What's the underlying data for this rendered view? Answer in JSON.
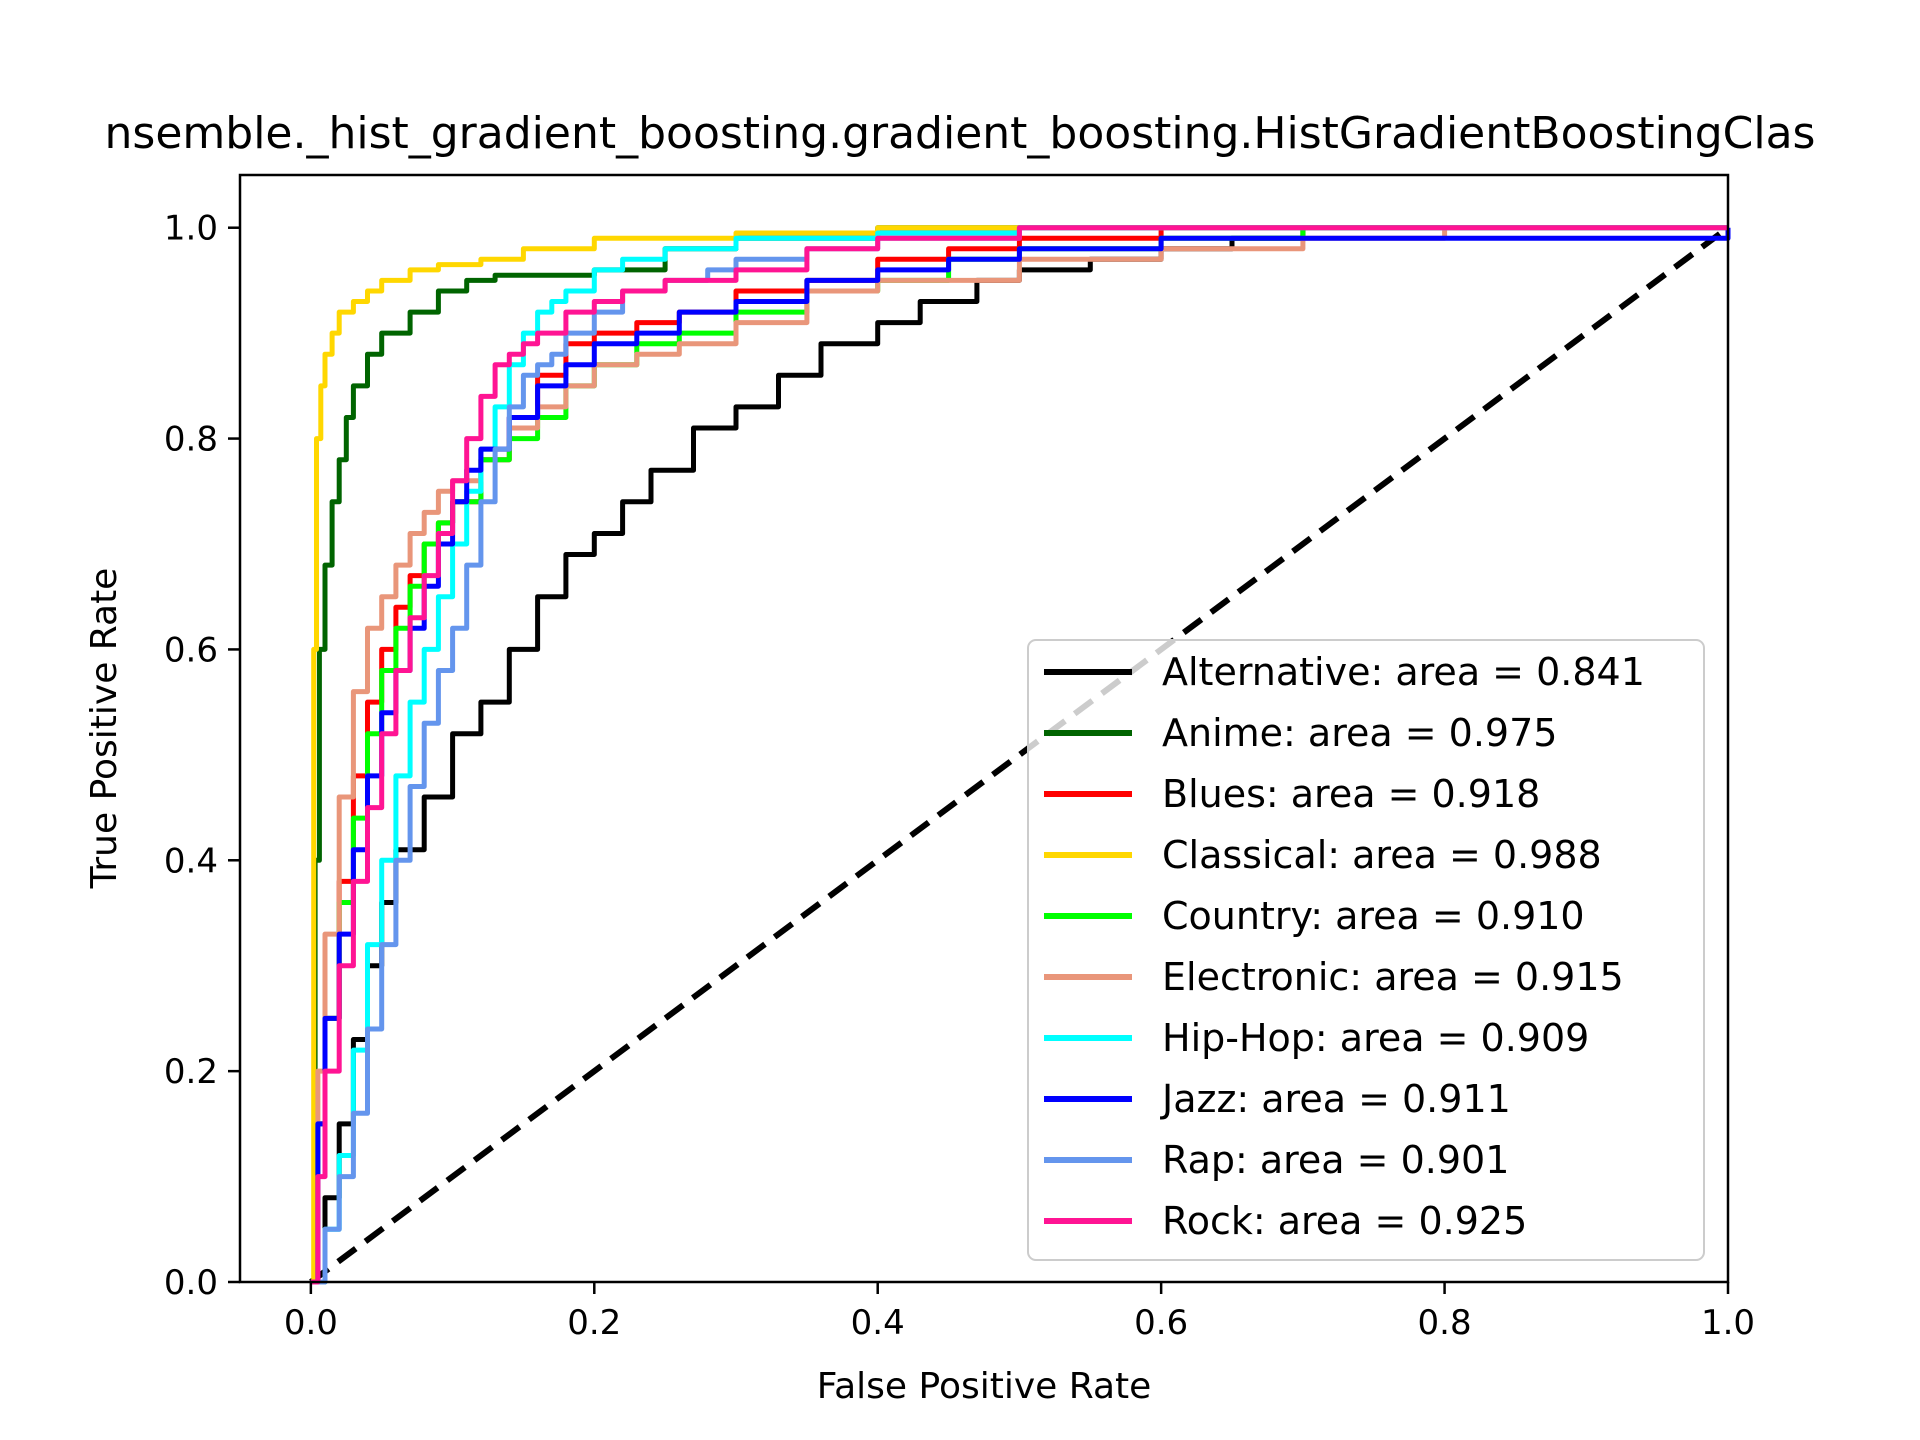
{
  "chart_data": {
    "type": "line",
    "title": "nsemble._hist_gradient_boosting.gradient_boosting.HistGradientBoostingClas",
    "xlabel": "False Positive Rate",
    "ylabel": "True Positive Rate",
    "xlim": [
      -0.05,
      1.0
    ],
    "ylim": [
      0.0,
      1.05
    ],
    "xticks": [
      "0.0",
      "0.2",
      "0.4",
      "0.6",
      "0.8",
      "1.0"
    ],
    "yticks": [
      "0.0",
      "0.2",
      "0.4",
      "0.6",
      "0.8",
      "1.0"
    ],
    "grid": false,
    "legend_position": "lower-right",
    "series": [
      {
        "name": "Alternative: area = 0.841",
        "color": "#000000",
        "x": [
          0.0,
          0.01,
          0.02,
          0.03,
          0.04,
          0.05,
          0.06,
          0.08,
          0.1,
          0.12,
          0.14,
          0.16,
          0.18,
          0.2,
          0.22,
          0.24,
          0.27,
          0.3,
          0.33,
          0.36,
          0.4,
          0.43,
          0.47,
          0.5,
          0.55,
          0.6,
          0.65,
          0.7,
          0.8,
          0.9,
          1.0
        ],
        "y": [
          0.0,
          0.08,
          0.15,
          0.23,
          0.3,
          0.36,
          0.41,
          0.46,
          0.52,
          0.55,
          0.6,
          0.65,
          0.69,
          0.71,
          0.74,
          0.77,
          0.81,
          0.83,
          0.86,
          0.89,
          0.91,
          0.93,
          0.95,
          0.96,
          0.97,
          0.98,
          0.99,
          1.0,
          1.0,
          1.0,
          1.0
        ]
      },
      {
        "name": "Anime: area = 0.975",
        "color": "#006400",
        "x": [
          0.0,
          0.003,
          0.006,
          0.01,
          0.015,
          0.02,
          0.025,
          0.03,
          0.04,
          0.05,
          0.07,
          0.09,
          0.11,
          0.13,
          0.2,
          0.25,
          0.3,
          0.4,
          0.6,
          1.0
        ],
        "y": [
          0.0,
          0.4,
          0.6,
          0.68,
          0.74,
          0.78,
          0.82,
          0.85,
          0.88,
          0.9,
          0.92,
          0.94,
          0.95,
          0.955,
          0.96,
          0.98,
          0.99,
          1.0,
          1.0,
          1.0
        ]
      },
      {
        "name": "Blues: area = 0.918",
        "color": "#ff0000",
        "x": [
          0.0,
          0.005,
          0.01,
          0.02,
          0.03,
          0.04,
          0.05,
          0.06,
          0.07,
          0.08,
          0.09,
          0.1,
          0.12,
          0.14,
          0.16,
          0.18,
          0.2,
          0.23,
          0.26,
          0.3,
          0.35,
          0.4,
          0.45,
          0.5,
          0.6,
          0.7,
          1.0
        ],
        "y": [
          0.0,
          0.15,
          0.25,
          0.38,
          0.48,
          0.55,
          0.6,
          0.64,
          0.67,
          0.7,
          0.72,
          0.74,
          0.78,
          0.82,
          0.86,
          0.89,
          0.9,
          0.91,
          0.92,
          0.94,
          0.95,
          0.97,
          0.98,
          0.99,
          1.0,
          1.0,
          1.0
        ]
      },
      {
        "name": "Classical: area = 0.988",
        "color": "#ffd700",
        "x": [
          0.0,
          0.002,
          0.004,
          0.007,
          0.01,
          0.015,
          0.02,
          0.03,
          0.04,
          0.05,
          0.07,
          0.09,
          0.12,
          0.15,
          0.2,
          0.3,
          0.4,
          0.6,
          1.0
        ],
        "y": [
          0.0,
          0.6,
          0.8,
          0.85,
          0.88,
          0.9,
          0.92,
          0.93,
          0.94,
          0.95,
          0.96,
          0.965,
          0.97,
          0.98,
          0.99,
          0.995,
          1.0,
          1.0,
          1.0
        ]
      },
      {
        "name": "Country: area = 0.910",
        "color": "#00ff00",
        "x": [
          0.0,
          0.005,
          0.01,
          0.02,
          0.03,
          0.04,
          0.05,
          0.06,
          0.07,
          0.08,
          0.09,
          0.1,
          0.12,
          0.14,
          0.16,
          0.18,
          0.2,
          0.23,
          0.26,
          0.3,
          0.35,
          0.4,
          0.45,
          0.5,
          0.6,
          0.7,
          1.0
        ],
        "y": [
          0.0,
          0.15,
          0.25,
          0.36,
          0.44,
          0.52,
          0.58,
          0.62,
          0.66,
          0.7,
          0.72,
          0.74,
          0.78,
          0.8,
          0.82,
          0.85,
          0.87,
          0.89,
          0.9,
          0.92,
          0.94,
          0.95,
          0.97,
          0.98,
          0.99,
          1.0,
          1.0
        ]
      },
      {
        "name": "Electronic: area = 0.915",
        "color": "#e9967a",
        "x": [
          0.0,
          0.005,
          0.01,
          0.02,
          0.03,
          0.04,
          0.05,
          0.06,
          0.07,
          0.08,
          0.09,
          0.1,
          0.12,
          0.14,
          0.16,
          0.18,
          0.2,
          0.23,
          0.26,
          0.3,
          0.35,
          0.4,
          0.5,
          0.6,
          0.7,
          0.8,
          1.0
        ],
        "y": [
          0.0,
          0.2,
          0.33,
          0.46,
          0.56,
          0.62,
          0.65,
          0.68,
          0.71,
          0.73,
          0.75,
          0.76,
          0.79,
          0.81,
          0.83,
          0.85,
          0.87,
          0.88,
          0.89,
          0.91,
          0.94,
          0.95,
          0.97,
          0.98,
          0.99,
          1.0,
          1.0
        ]
      },
      {
        "name": "Hip-Hop: area = 0.909",
        "color": "#00ffff",
        "x": [
          0.0,
          0.01,
          0.02,
          0.03,
          0.04,
          0.05,
          0.06,
          0.07,
          0.08,
          0.09,
          0.1,
          0.11,
          0.12,
          0.13,
          0.14,
          0.15,
          0.16,
          0.17,
          0.18,
          0.2,
          0.22,
          0.25,
          0.3,
          0.35,
          0.4,
          0.5,
          0.6,
          1.0
        ],
        "y": [
          0.0,
          0.05,
          0.12,
          0.22,
          0.32,
          0.4,
          0.48,
          0.55,
          0.6,
          0.65,
          0.7,
          0.75,
          0.79,
          0.83,
          0.87,
          0.9,
          0.92,
          0.93,
          0.94,
          0.96,
          0.97,
          0.98,
          0.99,
          0.99,
          0.995,
          1.0,
          1.0,
          1.0
        ]
      },
      {
        "name": "Jazz: area = 0.911",
        "color": "#0000ff",
        "x": [
          0.0,
          0.005,
          0.01,
          0.02,
          0.03,
          0.04,
          0.05,
          0.06,
          0.07,
          0.08,
          0.09,
          0.1,
          0.11,
          0.12,
          0.14,
          0.16,
          0.18,
          0.2,
          0.23,
          0.26,
          0.3,
          0.35,
          0.4,
          0.45,
          0.5,
          0.6,
          1.0
        ],
        "y": [
          0.0,
          0.15,
          0.25,
          0.33,
          0.41,
          0.48,
          0.54,
          0.58,
          0.62,
          0.66,
          0.7,
          0.74,
          0.77,
          0.79,
          0.82,
          0.85,
          0.87,
          0.89,
          0.9,
          0.92,
          0.93,
          0.95,
          0.96,
          0.97,
          0.98,
          0.99,
          1.0
        ]
      },
      {
        "name": "Rap: area = 0.901",
        "color": "#6495ed",
        "x": [
          0.0,
          0.01,
          0.02,
          0.03,
          0.04,
          0.05,
          0.06,
          0.07,
          0.08,
          0.09,
          0.1,
          0.11,
          0.12,
          0.13,
          0.14,
          0.15,
          0.16,
          0.17,
          0.18,
          0.2,
          0.22,
          0.25,
          0.28,
          0.3,
          0.35,
          0.4,
          0.5,
          0.6,
          1.0
        ],
        "y": [
          0.0,
          0.05,
          0.1,
          0.16,
          0.24,
          0.32,
          0.4,
          0.47,
          0.53,
          0.58,
          0.62,
          0.68,
          0.74,
          0.79,
          0.83,
          0.86,
          0.87,
          0.88,
          0.9,
          0.92,
          0.94,
          0.95,
          0.96,
          0.97,
          0.98,
          0.99,
          1.0,
          1.0,
          1.0
        ]
      },
      {
        "name": "Rock: area = 0.925",
        "color": "#ff1493",
        "x": [
          0.0,
          0.005,
          0.01,
          0.02,
          0.03,
          0.04,
          0.05,
          0.06,
          0.07,
          0.08,
          0.09,
          0.1,
          0.11,
          0.12,
          0.13,
          0.14,
          0.15,
          0.16,
          0.18,
          0.2,
          0.22,
          0.25,
          0.3,
          0.35,
          0.4,
          0.5,
          0.6,
          1.0
        ],
        "y": [
          0.0,
          0.1,
          0.2,
          0.3,
          0.38,
          0.45,
          0.52,
          0.58,
          0.63,
          0.67,
          0.71,
          0.76,
          0.8,
          0.84,
          0.87,
          0.88,
          0.89,
          0.9,
          0.92,
          0.93,
          0.94,
          0.95,
          0.96,
          0.98,
          0.99,
          1.0,
          1.0,
          1.0
        ]
      }
    ],
    "reference_line": {
      "x": [
        0.0,
        1.0
      ],
      "y": [
        0.0,
        1.0
      ],
      "color": "#000000",
      "style": "dashed"
    }
  }
}
